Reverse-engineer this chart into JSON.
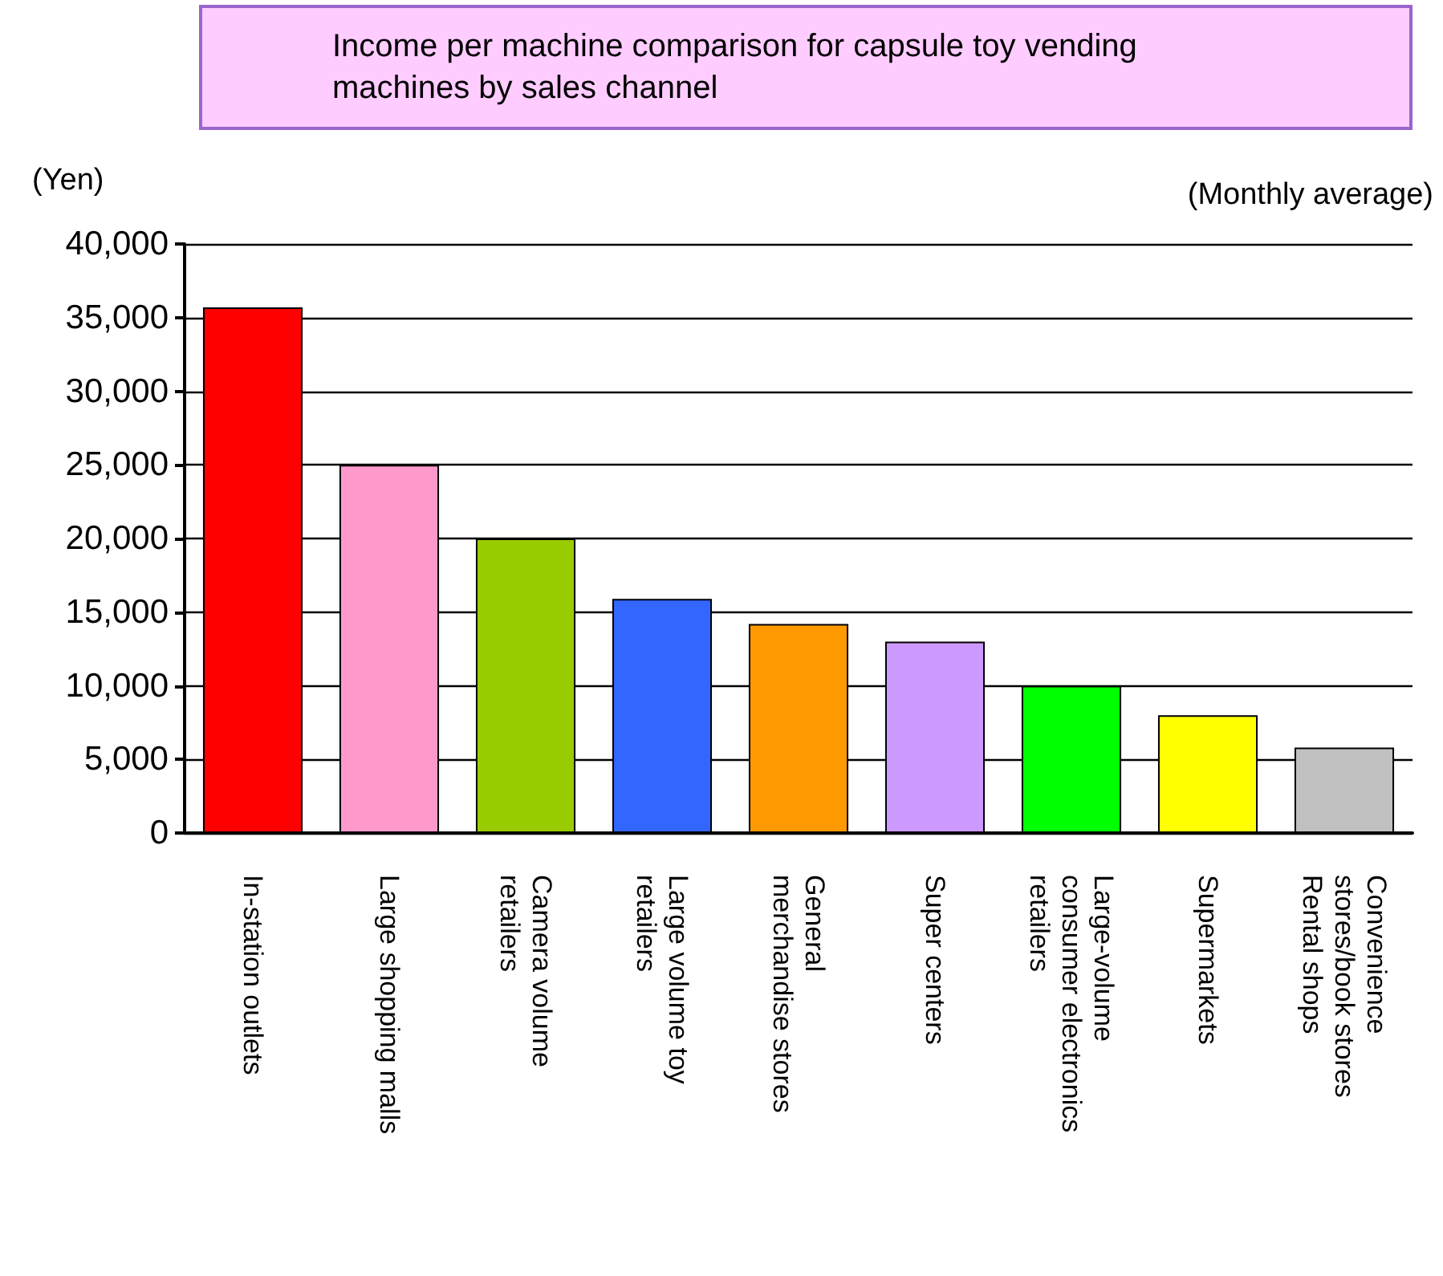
{
  "chart_data": {
    "type": "bar",
    "title": "Income per machine comparison for capsule toy vending machines by sales channel",
    "ylabel": "(Yen)",
    "annotations": [
      "(Monthly average)"
    ],
    "categories": [
      "In-station outlets",
      "Large shopping malls",
      "Camera volume\nretailers",
      "Large volume toy\nretailers",
      "General\nmerchandise stores",
      "Super centers",
      "Large-volume\nconsumer electronics\nretailers",
      "Supermarkets",
      "Convenience\nstores/book stores\nRental shops"
    ],
    "values": [
      35700,
      25000,
      20000,
      15900,
      14200,
      13000,
      10000,
      8000,
      5800
    ],
    "colors": [
      "#ff0000",
      "#ff99cc",
      "#99cc00",
      "#3366ff",
      "#ff9900",
      "#cc99ff",
      "#00ff00",
      "#ffff00",
      "#c0c0c0"
    ],
    "ylim": [
      0,
      40000
    ],
    "yticks": [
      0,
      {
        "value": 5000,
        "label": "5,000"
      },
      {
        "value": 10000,
        "label": "10,000"
      },
      {
        "value": 15000,
        "label": "15,000"
      },
      {
        "value": 20000,
        "label": "20,000"
      },
      {
        "value": 25000,
        "label": "25,000"
      },
      {
        "value": 30000,
        "label": "30,000"
      },
      {
        "value": 35000,
        "label": "35,000"
      },
      {
        "value": 40000,
        "label": "40,000"
      }
    ],
    "grid": "y"
  }
}
